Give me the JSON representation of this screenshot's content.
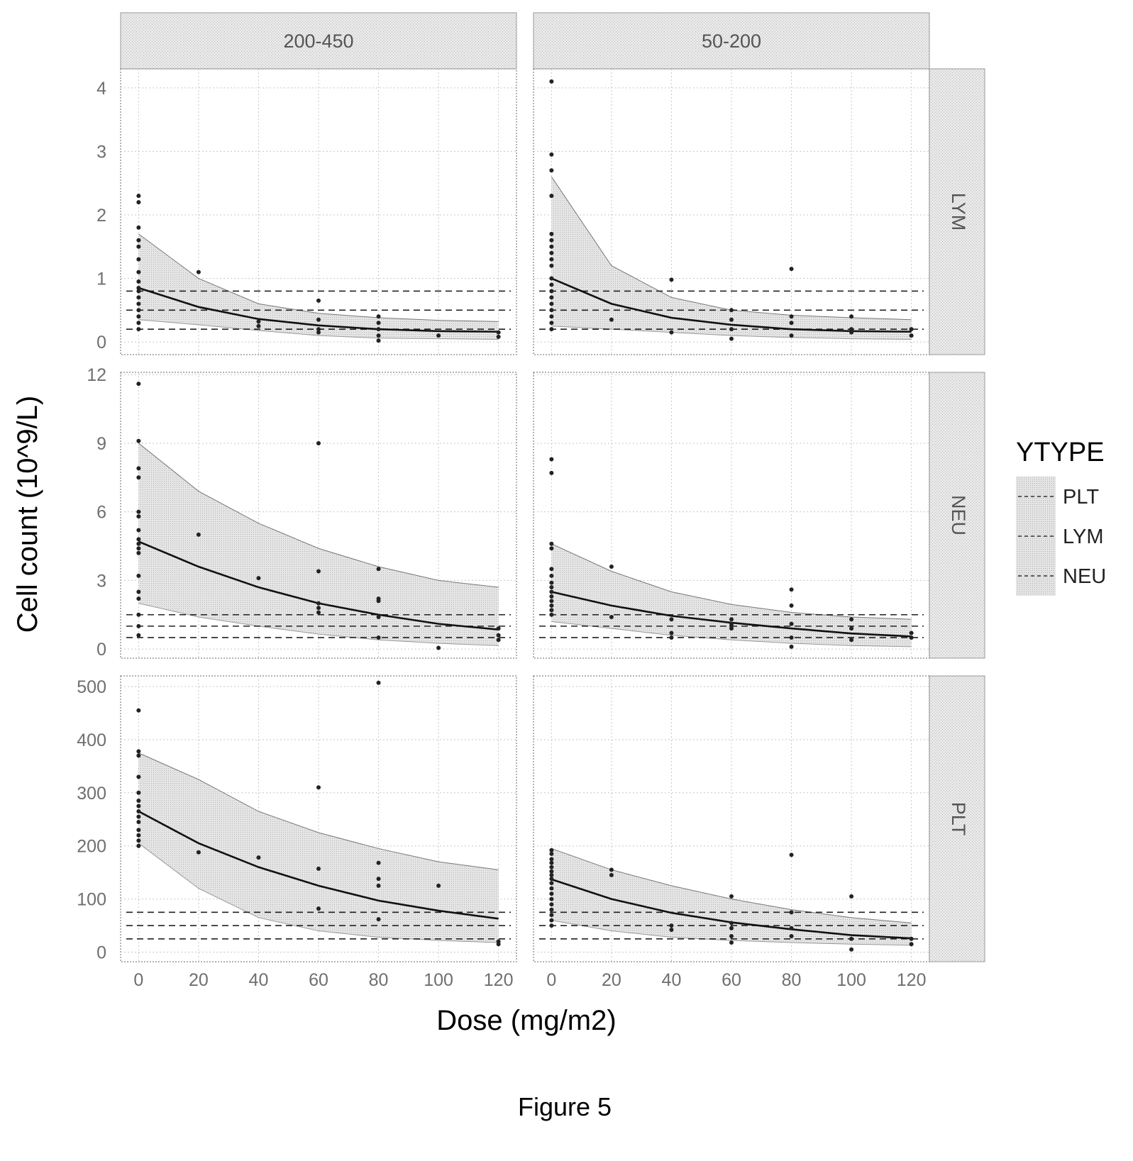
{
  "figure": {
    "caption": "Figure 5"
  },
  "chart_data": {
    "type": "scatter",
    "title": "",
    "xlabel": "Dose (mg/m2)",
    "ylabel": "Cell count (10^9/L)",
    "column_facets": [
      "200-450",
      "50-200"
    ],
    "row_facets": [
      "LYM",
      "NEU",
      "PLT"
    ],
    "x_ticks": [
      0,
      20,
      40,
      60,
      80,
      100,
      120
    ],
    "xlim": [
      -6,
      126
    ],
    "legend": {
      "title": "YTYPE",
      "entries": [
        "PLT",
        "LYM",
        "NEU"
      ],
      "placement": "right"
    },
    "grid": true,
    "rows": {
      "LYM": {
        "ylim": [
          -0.2,
          4.3
        ],
        "y_ticks": [
          0,
          1,
          2,
          3,
          4
        ],
        "thresholds": [
          0.2,
          0.5,
          0.8
        ]
      },
      "NEU": {
        "ylim": [
          -0.4,
          12.1
        ],
        "y_ticks": [
          0,
          3,
          6,
          9,
          12
        ],
        "thresholds": [
          0.5,
          1.0,
          1.5
        ]
      },
      "PLT": {
        "ylim": [
          -18,
          520
        ],
        "y_ticks": [
          0,
          100,
          200,
          300,
          400,
          500
        ],
        "thresholds": [
          25,
          50,
          75
        ]
      }
    },
    "panels": [
      {
        "column": "200-450",
        "row": "LYM",
        "fit": {
          "x": [
            0,
            20,
            40,
            60,
            80,
            100,
            120
          ],
          "y": [
            0.85,
            0.55,
            0.36,
            0.26,
            0.2,
            0.17,
            0.16
          ]
        },
        "band_upper": {
          "x": [
            0,
            20,
            40,
            60,
            80,
            100,
            120
          ],
          "y": [
            1.7,
            1.0,
            0.6,
            0.45,
            0.38,
            0.34,
            0.32
          ]
        },
        "band_lower": {
          "x": [
            0,
            20,
            40,
            60,
            80,
            100,
            120
          ],
          "y": [
            0.35,
            0.27,
            0.18,
            0.1,
            0.06,
            0.05,
            0.04
          ]
        },
        "points": {
          "x": [
            0,
            0,
            0,
            0,
            0,
            0,
            0,
            0,
            0,
            0,
            0,
            0,
            0,
            0,
            0,
            0,
            20,
            40,
            40,
            60,
            60,
            60,
            60,
            80,
            80,
            80,
            80,
            80,
            100,
            120,
            120
          ],
          "y": [
            2.3,
            2.2,
            1.8,
            1.6,
            1.5,
            1.3,
            1.1,
            0.95,
            0.85,
            0.8,
            0.7,
            0.6,
            0.5,
            0.4,
            0.3,
            0.2,
            1.1,
            0.32,
            0.25,
            0.65,
            0.35,
            0.2,
            0.15,
            0.4,
            0.3,
            0.2,
            0.1,
            0.02,
            0.1,
            0.15,
            0.08
          ]
        }
      },
      {
        "column": "50-200",
        "row": "LYM",
        "fit": {
          "x": [
            0,
            20,
            40,
            60,
            80,
            100,
            120
          ],
          "y": [
            1.0,
            0.6,
            0.38,
            0.27,
            0.2,
            0.17,
            0.16
          ]
        },
        "band_upper": {
          "x": [
            0,
            20,
            40,
            60,
            80,
            100,
            120
          ],
          "y": [
            2.6,
            1.2,
            0.7,
            0.5,
            0.42,
            0.38,
            0.35
          ]
        },
        "band_lower": {
          "x": [
            0,
            20,
            40,
            60,
            80,
            100,
            120
          ],
          "y": [
            0.25,
            0.2,
            0.15,
            0.1,
            0.07,
            0.05,
            0.04
          ]
        },
        "points": {
          "x": [
            0,
            0,
            0,
            0,
            0,
            0,
            0,
            0,
            0,
            0,
            0,
            0,
            0,
            0,
            0,
            0,
            0,
            0,
            0,
            20,
            40,
            40,
            60,
            60,
            60,
            60,
            80,
            80,
            80,
            80,
            100,
            100,
            100,
            120,
            120
          ],
          "y": [
            4.1,
            2.95,
            2.7,
            2.3,
            1.7,
            1.6,
            1.5,
            1.4,
            1.3,
            1.2,
            1.0,
            0.9,
            0.8,
            0.7,
            0.6,
            0.5,
            0.4,
            0.3,
            0.2,
            0.35,
            0.98,
            0.15,
            0.5,
            0.35,
            0.2,
            0.05,
            1.15,
            0.4,
            0.3,
            0.1,
            0.4,
            0.2,
            0.15,
            0.2,
            0.1
          ]
        }
      },
      {
        "column": "200-450",
        "row": "NEU",
        "fit": {
          "x": [
            0,
            20,
            40,
            60,
            80,
            100,
            120
          ],
          "y": [
            4.7,
            3.6,
            2.7,
            2.0,
            1.5,
            1.1,
            0.85
          ]
        },
        "band_upper": {
          "x": [
            0,
            20,
            40,
            60,
            80,
            100,
            120
          ],
          "y": [
            9.0,
            6.9,
            5.5,
            4.4,
            3.6,
            3.0,
            2.7
          ]
        },
        "band_lower": {
          "x": [
            0,
            20,
            40,
            60,
            80,
            100,
            120
          ],
          "y": [
            2.0,
            1.4,
            1.0,
            0.65,
            0.4,
            0.25,
            0.15
          ]
        },
        "points": {
          "x": [
            0,
            0,
            0,
            0,
            0,
            0,
            0,
            0,
            0,
            0,
            0,
            0,
            0,
            0,
            0,
            0,
            0,
            20,
            40,
            60,
            60,
            60,
            60,
            60,
            80,
            80,
            80,
            80,
            80,
            100,
            120,
            120,
            120
          ],
          "y": [
            11.6,
            9.1,
            7.9,
            7.5,
            6.0,
            5.8,
            5.2,
            4.8,
            4.6,
            4.4,
            4.2,
            3.2,
            2.5,
            2.2,
            1.5,
            1.0,
            0.6,
            5.0,
            3.1,
            9.0,
            3.4,
            2.0,
            1.8,
            1.6,
            3.5,
            2.2,
            2.1,
            1.4,
            0.5,
            0.05,
            0.9,
            0.6,
            0.4
          ]
        }
      },
      {
        "column": "50-200",
        "row": "NEU",
        "fit": {
          "x": [
            0,
            20,
            40,
            60,
            80,
            100,
            120
          ],
          "y": [
            2.5,
            1.9,
            1.45,
            1.15,
            0.9,
            0.68,
            0.55
          ]
        },
        "band_upper": {
          "x": [
            0,
            20,
            40,
            60,
            80,
            100,
            120
          ],
          "y": [
            4.6,
            3.4,
            2.5,
            1.95,
            1.6,
            1.4,
            1.3
          ]
        },
        "band_lower": {
          "x": [
            0,
            20,
            40,
            60,
            80,
            100,
            120
          ],
          "y": [
            1.2,
            0.9,
            0.6,
            0.4,
            0.25,
            0.15,
            0.1
          ]
        },
        "points": {
          "x": [
            0,
            0,
            0,
            0,
            0,
            0,
            0,
            0,
            0,
            0,
            0,
            0,
            0,
            0,
            20,
            20,
            40,
            40,
            40,
            60,
            60,
            60,
            60,
            80,
            80,
            80,
            80,
            80,
            100,
            100,
            100,
            120,
            120
          ],
          "y": [
            8.3,
            7.7,
            4.6,
            4.4,
            3.5,
            3.2,
            2.9,
            2.7,
            2.5,
            2.3,
            2.1,
            1.9,
            1.7,
            1.5,
            3.6,
            1.4,
            1.3,
            0.7,
            0.5,
            1.3,
            1.1,
            1.0,
            0.9,
            2.6,
            1.9,
            1.1,
            0.5,
            0.1,
            1.3,
            0.9,
            0.4,
            0.7,
            0.5
          ]
        }
      },
      {
        "column": "200-450",
        "row": "PLT",
        "fit": {
          "x": [
            0,
            20,
            40,
            60,
            80,
            100,
            120
          ],
          "y": [
            265,
            205,
            160,
            125,
            97,
            78,
            63
          ]
        },
        "band_upper": {
          "x": [
            0,
            20,
            40,
            60,
            80,
            100,
            120
          ],
          "y": [
            375,
            325,
            265,
            225,
            195,
            170,
            155
          ]
        },
        "band_lower": {
          "x": [
            0,
            20,
            40,
            60,
            80,
            100,
            120
          ],
          "y": [
            205,
            120,
            65,
            40,
            28,
            22,
            18
          ]
        },
        "points": {
          "x": [
            0,
            0,
            0,
            0,
            0,
            0,
            0,
            0,
            0,
            0,
            0,
            0,
            0,
            0,
            20,
            40,
            60,
            60,
            60,
            80,
            80,
            80,
            80,
            80,
            100,
            120,
            120
          ],
          "y": [
            455,
            378,
            370,
            330,
            300,
            285,
            275,
            265,
            255,
            245,
            230,
            220,
            210,
            200,
            188,
            178,
            310,
            157,
            82,
            507,
            168,
            138,
            125,
            62,
            125,
            20,
            15
          ]
        }
      },
      {
        "column": "50-200",
        "row": "PLT",
        "fit": {
          "x": [
            0,
            20,
            40,
            60,
            80,
            100,
            120
          ],
          "y": [
            137,
            100,
            74,
            56,
            43,
            32,
            26
          ]
        },
        "band_upper": {
          "x": [
            0,
            20,
            40,
            60,
            80,
            100,
            120
          ],
          "y": [
            195,
            155,
            125,
            100,
            80,
            65,
            55
          ]
        },
        "band_lower": {
          "x": [
            0,
            20,
            40,
            60,
            80,
            100,
            120
          ],
          "y": [
            60,
            40,
            28,
            22,
            18,
            15,
            13
          ]
        },
        "points": {
          "x": [
            0,
            0,
            0,
            0,
            0,
            0,
            0,
            0,
            0,
            0,
            0,
            0,
            0,
            0,
            0,
            0,
            0,
            20,
            20,
            40,
            40,
            60,
            60,
            60,
            60,
            60,
            80,
            80,
            80,
            80,
            100,
            100,
            100,
            120,
            120
          ],
          "y": [
            192,
            185,
            175,
            168,
            160,
            152,
            145,
            138,
            130,
            120,
            110,
            100,
            90,
            80,
            70,
            60,
            50,
            155,
            145,
            50,
            42,
            105,
            55,
            45,
            30,
            18,
            183,
            75,
            45,
            30,
            105,
            25,
            5,
            25,
            15
          ]
        }
      }
    ]
  }
}
